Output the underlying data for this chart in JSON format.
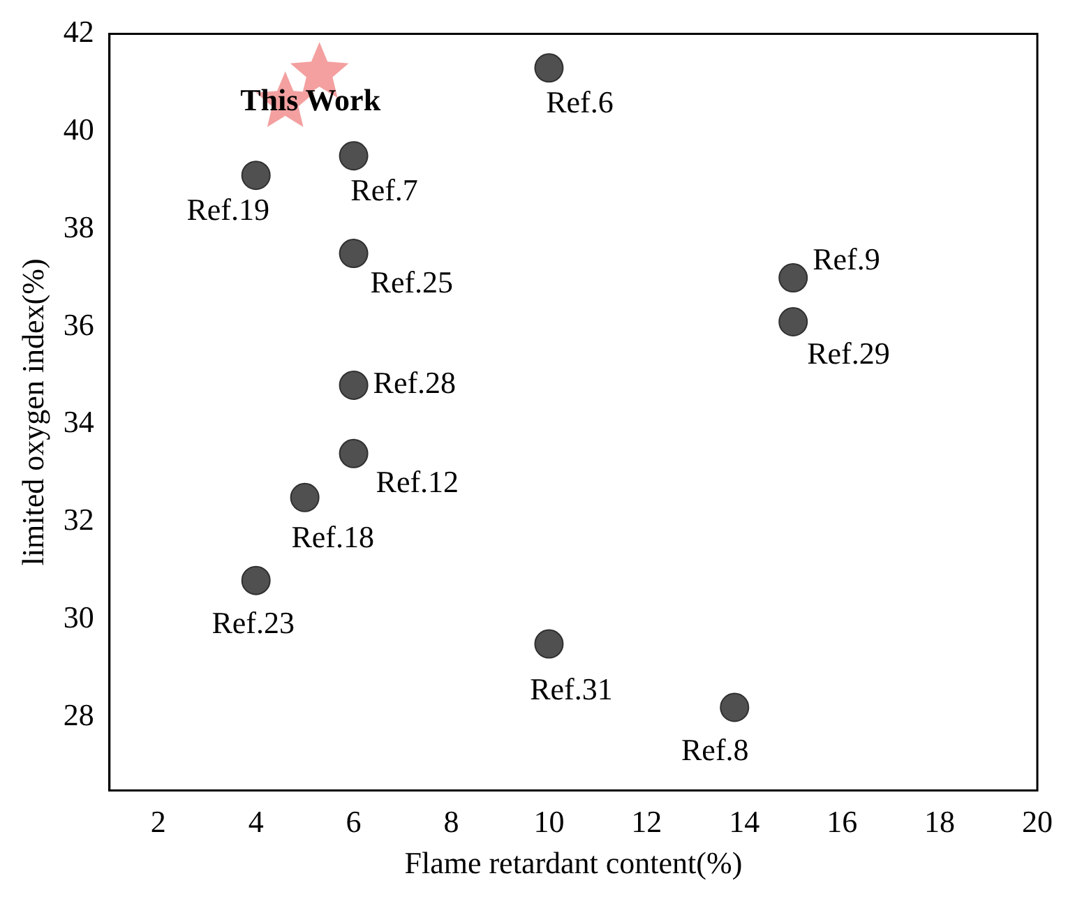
{
  "chart_data": {
    "type": "scatter",
    "xlabel": "Flame retardant content(%)",
    "ylabel": "limited oxygen index(%)",
    "xlim": [
      1,
      20
    ],
    "ylim": [
      26.5,
      42
    ],
    "xticks": [
      2,
      4,
      6,
      8,
      10,
      12,
      14,
      16,
      18,
      20
    ],
    "yticks": [
      28,
      30,
      32,
      34,
      36,
      38,
      40,
      42
    ],
    "grid": false,
    "legend": false,
    "series": [
      {
        "color": "#f4a0a0",
        "marker": "star",
        "x": [
          4.6,
          5.3
        ],
        "values": [
          40.6,
          41.2
        ]
      },
      {
        "color": "#505050",
        "marker": "circle",
        "x": [
          10,
          4,
          6,
          6,
          15,
          15,
          6,
          6,
          5,
          4,
          10,
          13.8
        ],
        "values": [
          41.3,
          39.1,
          39.5,
          37.5,
          37.0,
          36.1,
          34.8,
          33.4,
          32.5,
          30.8,
          29.5,
          28.2
        ]
      }
    ],
    "annotations": [
      {
        "text": "This Work",
        "x": 4.6,
        "y": 40.6
      },
      {
        "text": "Ref.6",
        "x": 10,
        "y": 41.3
      },
      {
        "text": "Ref.19",
        "x": 4,
        "y": 39.1
      },
      {
        "text": "Ref.7",
        "x": 6,
        "y": 39.5
      },
      {
        "text": "Ref.25",
        "x": 6,
        "y": 37.5
      },
      {
        "text": "Ref.9",
        "x": 15,
        "y": 37.0
      },
      {
        "text": "Ref.29",
        "x": 15,
        "y": 36.1
      },
      {
        "text": "Ref.28",
        "x": 6,
        "y": 34.8
      },
      {
        "text": "Ref.12",
        "x": 6,
        "y": 33.4
      },
      {
        "text": "Ref.18",
        "x": 5,
        "y": 32.5
      },
      {
        "text": "Ref.23",
        "x": 4,
        "y": 30.8
      },
      {
        "text": "Ref.31",
        "x": 10,
        "y": 29.5
      },
      {
        "text": "Ref.8",
        "x": 13.8,
        "y": 28.2
      }
    ]
  }
}
